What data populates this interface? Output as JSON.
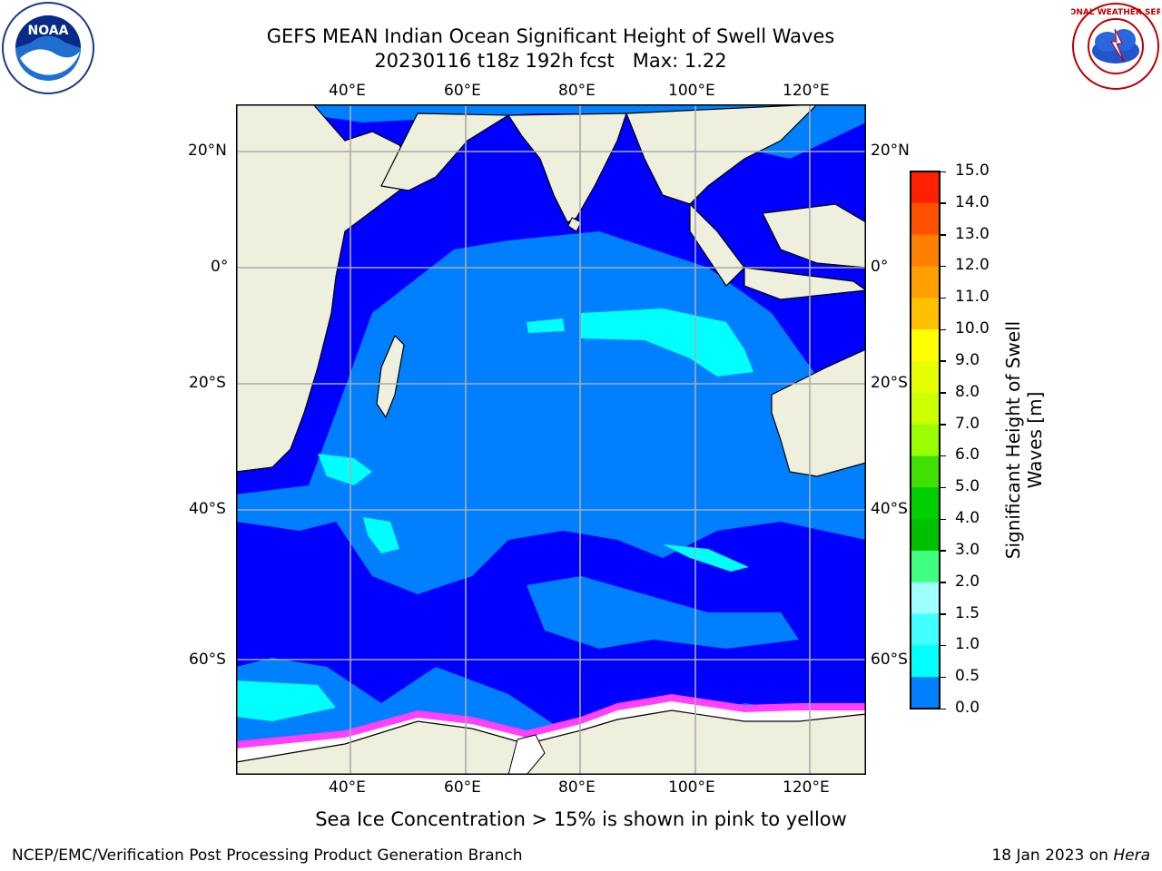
{
  "title": {
    "line1": "GEFS MEAN Indian Ocean Significant Height of Swell Waves",
    "line2": "20230116 t18z 192h fcst   Max: 1.22"
  },
  "map": {
    "lon_ticks_top": [
      "40°E",
      "60°E",
      "80°E",
      "100°E",
      "120°E"
    ],
    "lon_ticks_bottom": [
      "40°E",
      "60°E",
      "80°E",
      "100°E",
      "120°E"
    ],
    "lat_ticks_left": [
      "20°N",
      "0°",
      "20°S",
      "40°S",
      "60°S"
    ],
    "lat_ticks_right": [
      "20°N",
      "0°",
      "20°S",
      "40°S",
      "60°S"
    ],
    "colors": {
      "land": "#efefde",
      "ocean_low": "#0000ff",
      "ocean_mid": "#0080ff",
      "ocean_high": "#00ffff",
      "ice": "#ffffff",
      "ice_edge": "#ff40ff"
    }
  },
  "colorbar": {
    "label": "Significant Height of Swell Waves [m]",
    "ticks": [
      "15.0",
      "14.0",
      "13.0",
      "12.0",
      "11.0",
      "10.0",
      "9.0",
      "8.0",
      "7.0",
      "6.0",
      "5.0",
      "4.0",
      "3.0",
      "2.0",
      "1.5",
      "1.0",
      "0.5",
      "0.0"
    ],
    "colors": [
      "#ff0000",
      "#ff2000",
      "#ff5000",
      "#ff8000",
      "#ffa000",
      "#ffc000",
      "#ffff00",
      "#e6ff00",
      "#ccff00",
      "#99ff00",
      "#40e000",
      "#00d000",
      "#00c000",
      "#40ff80",
      "#a0ffff",
      "#40ffff",
      "#00ffff",
      "#0080ff",
      "#0000ff"
    ]
  },
  "caption": "Sea Ice Concentration > 15% is shown in pink to yellow",
  "footer": {
    "left": "NCEP/EMC/Verification Post Processing Product Generation Branch",
    "right_prefix": "18 Jan 2023 on ",
    "right_host": "Hera"
  },
  "logos": {
    "noaa_text": "NOAA",
    "nws_text": "NATIONAL WEATHER SERVICE"
  }
}
